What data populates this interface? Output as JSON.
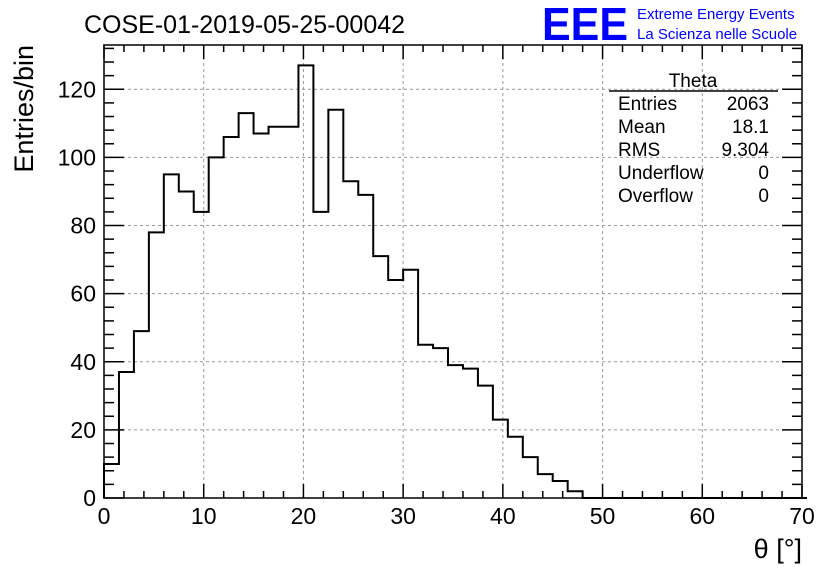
{
  "chart_data": {
    "type": "histogram",
    "title": "COSE-01-2019-05-25-00042",
    "xlabel": "θ [°]",
    "ylabel": "Entries/bin",
    "xlim": [
      0,
      70
    ],
    "ylim": [
      0,
      133
    ],
    "bin_width": 1.5,
    "x_ticks": [
      0,
      10,
      20,
      30,
      40,
      50,
      60,
      70
    ],
    "y_ticks": [
      0,
      20,
      40,
      60,
      80,
      100,
      120
    ],
    "grid": true,
    "values": [
      10,
      37,
      49,
      78,
      95,
      90,
      84,
      100,
      106,
      113,
      107,
      109,
      109,
      127,
      84,
      114,
      93,
      89,
      71,
      64,
      67,
      45,
      44,
      39,
      38,
      33,
      23,
      18,
      12,
      7,
      5,
      2,
      0,
      0,
      0,
      0,
      0,
      0,
      0,
      0,
      0,
      0,
      0,
      0,
      0,
      0,
      0
    ]
  },
  "logo": {
    "mark": "EEE",
    "line1": "Extreme Energy Events",
    "line2": "La Scienza nelle Scuole",
    "color": "#0000ff"
  },
  "stats": {
    "title": "Theta",
    "rows": [
      {
        "label": "Entries",
        "value": "2063"
      },
      {
        "label": "Mean",
        "value": "18.1"
      },
      {
        "label": "RMS",
        "value": "9.304"
      },
      {
        "label": "Underflow",
        "value": "0"
      },
      {
        "label": "Overflow",
        "value": "0"
      }
    ]
  }
}
